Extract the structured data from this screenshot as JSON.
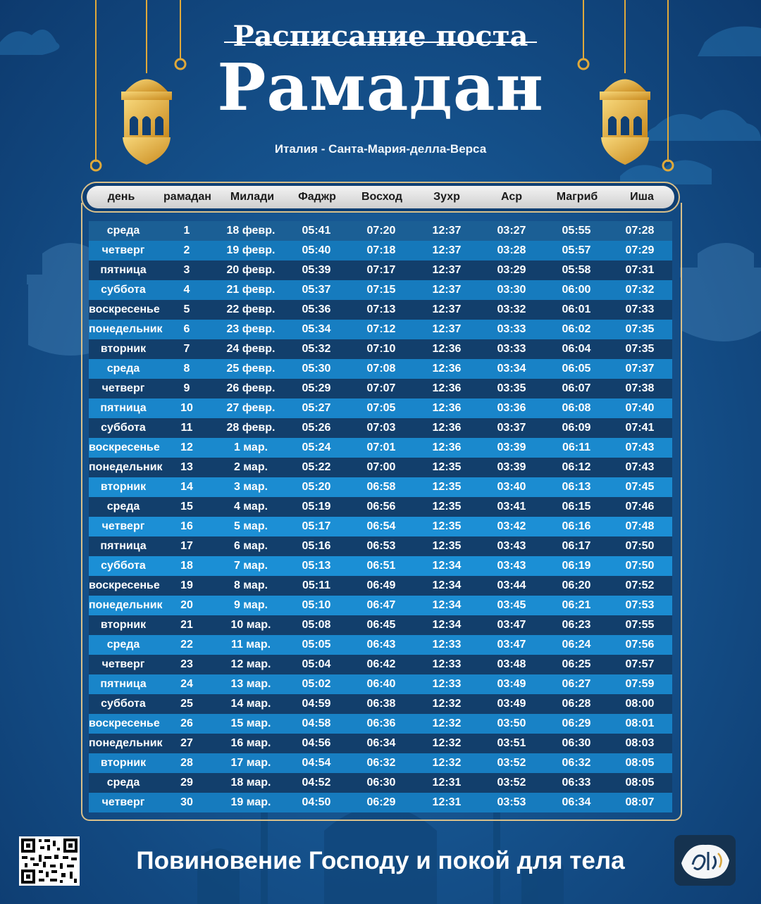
{
  "title_top": "Расписание поста",
  "title_main": "Рамадан",
  "location": "Италия - Санта-Мария-делла-Верса",
  "columns": [
    "день",
    "рамадан",
    "Милади",
    "Фаджр",
    "Восход",
    "Зухр",
    "Аср",
    "Магриб",
    "Иша"
  ],
  "rows": [
    [
      "среда",
      "1",
      "18 февр.",
      "05:41",
      "07:20",
      "12:37",
      "03:27",
      "05:55",
      "07:28"
    ],
    [
      "четверг",
      "2",
      "19 февр.",
      "05:40",
      "07:18",
      "12:37",
      "03:28",
      "05:57",
      "07:29"
    ],
    [
      "пятница",
      "3",
      "20 февр.",
      "05:39",
      "07:17",
      "12:37",
      "03:29",
      "05:58",
      "07:31"
    ],
    [
      "суббота",
      "4",
      "21 февр.",
      "05:37",
      "07:15",
      "12:37",
      "03:30",
      "06:00",
      "07:32"
    ],
    [
      "воскресенье",
      "5",
      "22 февр.",
      "05:36",
      "07:13",
      "12:37",
      "03:32",
      "06:01",
      "07:33"
    ],
    [
      "понедельник",
      "6",
      "23 февр.",
      "05:34",
      "07:12",
      "12:37",
      "03:33",
      "06:02",
      "07:35"
    ],
    [
      "вторник",
      "7",
      "24 февр.",
      "05:32",
      "07:10",
      "12:36",
      "03:33",
      "06:04",
      "07:35"
    ],
    [
      "среда",
      "8",
      "25 февр.",
      "05:30",
      "07:08",
      "12:36",
      "03:34",
      "06:05",
      "07:37"
    ],
    [
      "четверг",
      "9",
      "26 февр.",
      "05:29",
      "07:07",
      "12:36",
      "03:35",
      "06:07",
      "07:38"
    ],
    [
      "пятница",
      "10",
      "27 февр.",
      "05:27",
      "07:05",
      "12:36",
      "03:36",
      "06:08",
      "07:40"
    ],
    [
      "суббота",
      "11",
      "28 февр.",
      "05:26",
      "07:03",
      "12:36",
      "03:37",
      "06:09",
      "07:41"
    ],
    [
      "воскресенье",
      "12",
      "1 мар.",
      "05:24",
      "07:01",
      "12:36",
      "03:39",
      "06:11",
      "07:43"
    ],
    [
      "понедельник",
      "13",
      "2 мар.",
      "05:22",
      "07:00",
      "12:35",
      "03:39",
      "06:12",
      "07:43"
    ],
    [
      "вторник",
      "14",
      "3 мар.",
      "05:20",
      "06:58",
      "12:35",
      "03:40",
      "06:13",
      "07:45"
    ],
    [
      "среда",
      "15",
      "4 мар.",
      "05:19",
      "06:56",
      "12:35",
      "03:41",
      "06:15",
      "07:46"
    ],
    [
      "четверг",
      "16",
      "5 мар.",
      "05:17",
      "06:54",
      "12:35",
      "03:42",
      "06:16",
      "07:48"
    ],
    [
      "пятница",
      "17",
      "6 мар.",
      "05:16",
      "06:53",
      "12:35",
      "03:43",
      "06:17",
      "07:50"
    ],
    [
      "суббота",
      "18",
      "7 мар.",
      "05:13",
      "06:51",
      "12:34",
      "03:43",
      "06:19",
      "07:50"
    ],
    [
      "воскресенье",
      "19",
      "8 мар.",
      "05:11",
      "06:49",
      "12:34",
      "03:44",
      "06:20",
      "07:52"
    ],
    [
      "понедельник",
      "20",
      "9 мар.",
      "05:10",
      "06:47",
      "12:34",
      "03:45",
      "06:21",
      "07:53"
    ],
    [
      "вторник",
      "21",
      "10 мар.",
      "05:08",
      "06:45",
      "12:34",
      "03:47",
      "06:23",
      "07:55"
    ],
    [
      "среда",
      "22",
      "11 мар.",
      "05:05",
      "06:43",
      "12:33",
      "03:47",
      "06:24",
      "07:56"
    ],
    [
      "четверг",
      "23",
      "12 мар.",
      "05:04",
      "06:42",
      "12:33",
      "03:48",
      "06:25",
      "07:57"
    ],
    [
      "пятница",
      "24",
      "13 мар.",
      "05:02",
      "06:40",
      "12:33",
      "03:49",
      "06:27",
      "07:59"
    ],
    [
      "суббота",
      "25",
      "14 мар.",
      "04:59",
      "06:38",
      "12:32",
      "03:49",
      "06:28",
      "08:00"
    ],
    [
      "воскресенье",
      "26",
      "15 мар.",
      "04:58",
      "06:36",
      "12:32",
      "03:50",
      "06:29",
      "08:01"
    ],
    [
      "понедельник",
      "27",
      "16 мар.",
      "04:56",
      "06:34",
      "12:32",
      "03:51",
      "06:30",
      "08:03"
    ],
    [
      "вторник",
      "28",
      "17 мар.",
      "04:54",
      "06:32",
      "12:32",
      "03:52",
      "06:32",
      "08:05"
    ],
    [
      "среда",
      "29",
      "18 мар.",
      "04:52",
      "06:30",
      "12:31",
      "03:52",
      "06:33",
      "08:05"
    ],
    [
      "четверг",
      "30",
      "19 мар.",
      "04:50",
      "06:29",
      "12:31",
      "03:53",
      "06:34",
      "08:07"
    ]
  ],
  "footer_text": "Повиновение Господу и покой для тела",
  "icons": [
    "lantern-icon",
    "qr-code-icon",
    "brand-logo-icon"
  ],
  "colors": {
    "background": "#16548f",
    "row_dark": "#123f6c",
    "row_light": "#0f79bf",
    "gold": "#e0a93a",
    "frame": "#d9c08a"
  }
}
